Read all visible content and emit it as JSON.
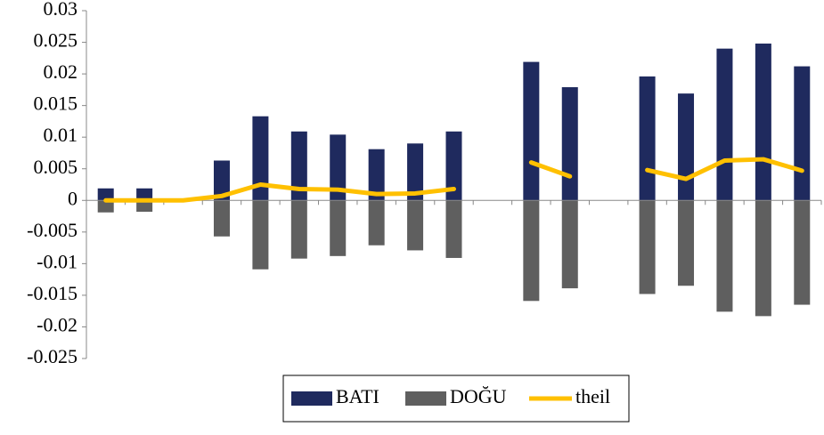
{
  "chart_data": {
    "type": "bar",
    "categories": [
      null,
      null,
      null,
      null,
      null,
      null,
      null,
      null,
      null,
      null,
      null,
      null,
      null,
      null,
      null,
      null,
      null,
      null,
      null
    ],
    "series": [
      {
        "name": "BATI",
        "color": "#1f2a5e",
        "values": [
          0.0019,
          0.0019,
          null,
          0.0063,
          0.0133,
          0.0109,
          0.0104,
          0.0081,
          0.009,
          0.0109,
          null,
          0.0219,
          0.0179,
          null,
          0.0196,
          0.0169,
          0.024,
          0.0248,
          0.0212
        ]
      },
      {
        "name": "DOĞU",
        "color": "#5f5f5f",
        "values": [
          -0.0019,
          -0.0018,
          null,
          -0.0057,
          -0.0109,
          -0.0092,
          -0.0088,
          -0.0071,
          -0.0079,
          -0.0091,
          null,
          -0.0159,
          -0.0139,
          null,
          -0.0148,
          -0.0135,
          -0.0176,
          -0.0183,
          -0.0165
        ]
      },
      {
        "name": "theil",
        "color": "#ffc000",
        "type": "line",
        "values": [
          0,
          0,
          0,
          0.0007,
          0.0025,
          0.0018,
          0.0017,
          0.001,
          0.0011,
          0.0018,
          null,
          0.006,
          0.0038,
          null,
          0.0048,
          0.0034,
          0.0063,
          0.0065,
          0.0047
        ]
      }
    ],
    "ylim": [
      -0.025,
      0.03
    ],
    "yticks": [
      -0.025,
      -0.02,
      -0.015,
      -0.01,
      -0.005,
      0,
      0.005,
      0.01,
      0.015,
      0.02,
      0.025,
      0.03
    ],
    "grid": false,
    "legend": "bottom"
  }
}
